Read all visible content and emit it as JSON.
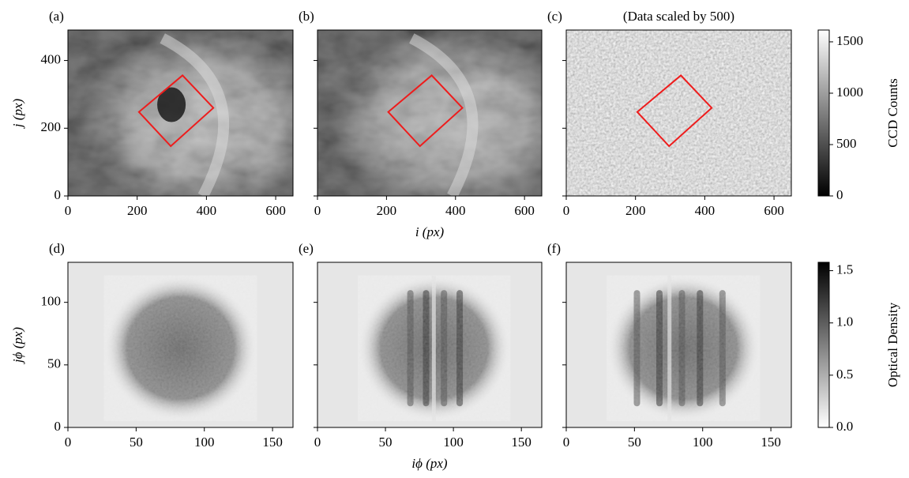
{
  "chart_data": [
    {
      "type": "image",
      "panel": "(a)",
      "xlim": [
        0,
        650
      ],
      "xticks": [
        0,
        200,
        400,
        600
      ],
      "ylim": [
        0,
        490
      ],
      "yticks": [
        0,
        200,
        400
      ],
      "ylabel": "j (px)",
      "roi": {
        "i": [
          205,
          331,
          420,
          297
        ],
        "j": [
          248,
          356,
          260,
          147
        ]
      },
      "roi_color": "#ee1c1c"
    },
    {
      "type": "image",
      "panel": "(b)",
      "xlim": [
        0,
        650
      ],
      "xticks": [
        0,
        200,
        400,
        600
      ],
      "ylim": [
        0,
        490
      ],
      "yticks": [
        0,
        200,
        400
      ],
      "ytick_labels": false,
      "xlabel": "i (px)",
      "roi": {
        "i": [
          205,
          331,
          420,
          297
        ],
        "j": [
          248,
          356,
          260,
          147
        ]
      },
      "roi_color": "#ee1c1c"
    },
    {
      "type": "image",
      "panel": "(c)",
      "title": "(Data scaled by 500)",
      "xlim": [
        0,
        650
      ],
      "xticks": [
        0,
        200,
        400,
        600
      ],
      "ylim": [
        0,
        490
      ],
      "yticks": [
        0,
        200,
        400
      ],
      "ytick_labels": false,
      "roi": {
        "i": [
          205,
          331,
          420,
          297
        ],
        "j": [
          248,
          356,
          260,
          147
        ]
      },
      "roi_color": "#ee1c1c"
    },
    {
      "type": "image",
      "panel": "(d)",
      "xlim": [
        0,
        165
      ],
      "xticks": [
        0,
        50,
        100,
        150
      ],
      "ylim": [
        0,
        132
      ],
      "yticks": [
        0,
        50,
        100
      ],
      "ylabel": "jϕ (px)"
    },
    {
      "type": "image",
      "panel": "(e)",
      "xlim": [
        0,
        165
      ],
      "xticks": [
        0,
        50,
        100,
        150
      ],
      "ylim": [
        0,
        132
      ],
      "yticks": [
        0,
        50,
        100
      ],
      "ytick_labels": false,
      "xlabel": "iϕ (px)"
    },
    {
      "type": "image",
      "panel": "(f)",
      "xlim": [
        0,
        165
      ],
      "xticks": [
        0,
        50,
        100,
        150
      ],
      "ylim": [
        0,
        132
      ],
      "yticks": [
        0,
        50,
        100
      ],
      "ytick_labels": false
    },
    {
      "type": "colorbar",
      "label": "CCD Counts",
      "cmap": "gray",
      "ylim": [
        0,
        1615
      ],
      "yticks": [
        0,
        500,
        1000,
        1500
      ]
    },
    {
      "type": "colorbar",
      "label": "Optical Density",
      "cmap": "gray_r",
      "ylim": [
        0,
        1.58
      ],
      "yticks": [
        {
          "value": 0,
          "label": "0.0"
        },
        0.5,
        {
          "value": 1,
          "label": "1.0"
        },
        1.5
      ]
    }
  ]
}
